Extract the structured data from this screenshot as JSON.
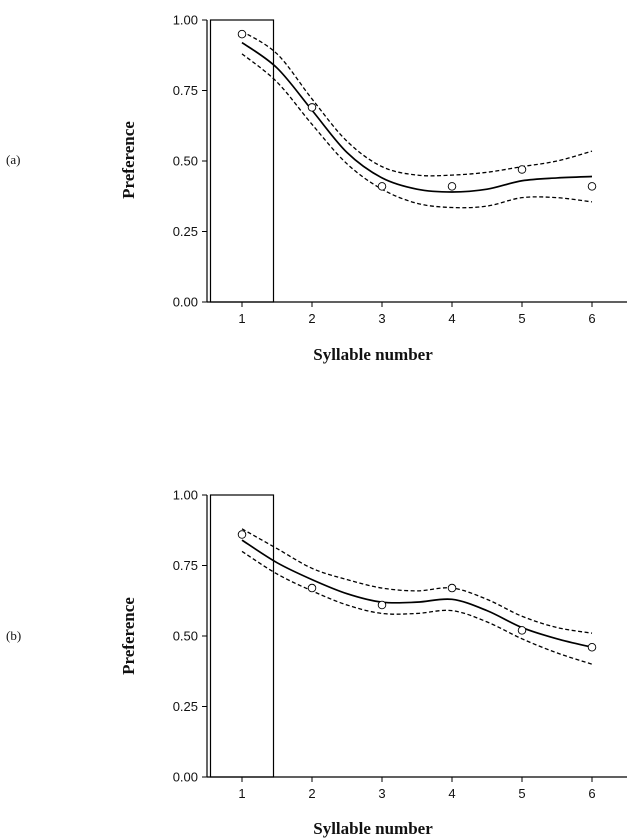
{
  "chart_data": [
    {
      "type": "line",
      "panel_label": "(a)",
      "xlabel": "Syllable number",
      "ylabel": "Preference",
      "xlim": [
        0.5,
        6.5
      ],
      "ylim": [
        0,
        1
      ],
      "x_ticks": [
        "1",
        "2",
        "3",
        "4",
        "5",
        "6"
      ],
      "y_ticks": [
        "0.00",
        "0.25",
        "0.50",
        "0.75",
        "1.00"
      ],
      "highlight_bar": {
        "x": 1,
        "value": 1.0
      },
      "observed": {
        "x": [
          1,
          2,
          3,
          4,
          5,
          6
        ],
        "y": [
          0.95,
          0.69,
          0.41,
          0.41,
          0.47,
          0.41
        ]
      },
      "fit": {
        "x": [
          1,
          1.5,
          2,
          2.5,
          3,
          3.5,
          4,
          4.5,
          5,
          5.5,
          6
        ],
        "y": [
          0.92,
          0.83,
          0.68,
          0.53,
          0.44,
          0.4,
          0.39,
          0.4,
          0.43,
          0.44,
          0.445
        ]
      },
      "ci_upper": {
        "x": [
          1,
          1.5,
          2,
          2.5,
          3,
          3.5,
          4,
          4.5,
          5,
          5.5,
          6
        ],
        "y": [
          0.96,
          0.88,
          0.72,
          0.57,
          0.48,
          0.45,
          0.45,
          0.46,
          0.48,
          0.5,
          0.535
        ]
      },
      "ci_lower": {
        "x": [
          1,
          1.5,
          2,
          2.5,
          3,
          3.5,
          4,
          4.5,
          5,
          5.5,
          6
        ],
        "y": [
          0.88,
          0.78,
          0.63,
          0.49,
          0.4,
          0.35,
          0.335,
          0.34,
          0.37,
          0.37,
          0.355
        ]
      }
    },
    {
      "type": "line",
      "panel_label": "(b)",
      "xlabel": "Syllable number",
      "ylabel": "Preference",
      "xlim": [
        0.5,
        6.5
      ],
      "ylim": [
        0,
        1
      ],
      "x_ticks": [
        "1",
        "2",
        "3",
        "4",
        "5",
        "6"
      ],
      "y_ticks": [
        "0.00",
        "0.25",
        "0.50",
        "0.75",
        "1.00"
      ],
      "highlight_bar": {
        "x": 1,
        "value": 1.0
      },
      "observed": {
        "x": [
          1,
          2,
          3,
          4,
          5,
          6
        ],
        "y": [
          0.86,
          0.67,
          0.61,
          0.67,
          0.52,
          0.46
        ]
      },
      "fit": {
        "x": [
          1,
          1.5,
          2,
          2.5,
          3,
          3.5,
          4,
          4.5,
          5,
          5.5,
          6
        ],
        "y": [
          0.84,
          0.76,
          0.7,
          0.65,
          0.62,
          0.62,
          0.63,
          0.59,
          0.53,
          0.49,
          0.46
        ]
      },
      "ci_upper": {
        "x": [
          1,
          1.5,
          2,
          2.5,
          3,
          3.5,
          4,
          4.5,
          5,
          5.5,
          6
        ],
        "y": [
          0.88,
          0.81,
          0.74,
          0.7,
          0.67,
          0.66,
          0.67,
          0.63,
          0.57,
          0.53,
          0.51
        ]
      },
      "ci_lower": {
        "x": [
          1,
          1.5,
          2,
          2.5,
          3,
          3.5,
          4,
          4.5,
          5,
          5.5,
          6
        ],
        "y": [
          0.8,
          0.72,
          0.66,
          0.61,
          0.58,
          0.58,
          0.59,
          0.55,
          0.49,
          0.44,
          0.4
        ]
      }
    }
  ]
}
